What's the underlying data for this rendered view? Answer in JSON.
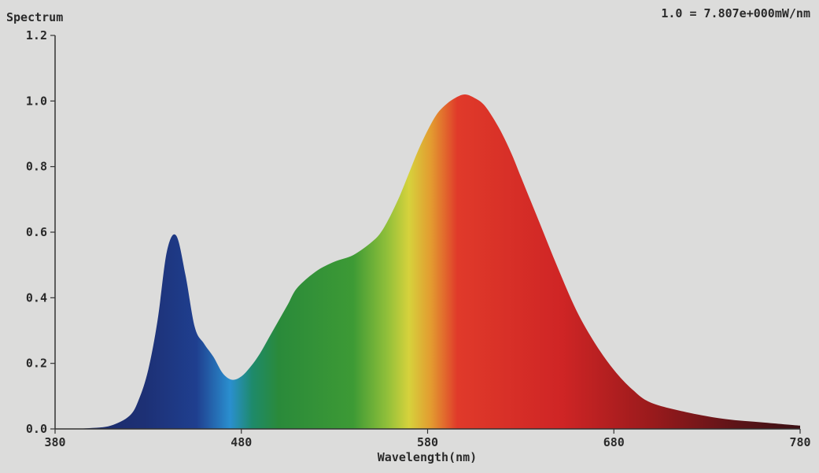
{
  "chart_data": {
    "type": "area",
    "title": "",
    "ylabel": "Spectrum",
    "xlabel": "Wavelength(nm)",
    "scale_note": "1.0 = 7.807e+000mW/nm",
    "xlim": [
      380,
      780
    ],
    "ylim": [
      0,
      1.2
    ],
    "x_ticks": [
      "380",
      "480",
      "580",
      "680",
      "780"
    ],
    "y_ticks": [
      "0.0",
      "0.2",
      "0.4",
      "0.6",
      "0.8",
      "1.0",
      "1.2"
    ],
    "grid": false,
    "fill": "visible-spectrum-gradient",
    "series": [
      {
        "x": [
          380,
          390,
          400,
          410,
          420,
          425,
          430,
          435,
          440,
          445,
          450,
          455,
          460,
          465,
          470,
          475,
          480,
          485,
          490,
          495,
          500,
          505,
          510,
          520,
          530,
          540,
          550,
          555,
          560,
          565,
          570,
          575,
          580,
          585,
          590,
          595,
          600,
          605,
          610,
          615,
          620,
          625,
          630,
          640,
          650,
          660,
          670,
          680,
          690,
          700,
          720,
          740,
          760,
          780
        ],
        "values": [
          0.0,
          0.0,
          0.003,
          0.01,
          0.04,
          0.09,
          0.18,
          0.33,
          0.54,
          0.59,
          0.47,
          0.31,
          0.26,
          0.22,
          0.17,
          0.15,
          0.16,
          0.19,
          0.23,
          0.28,
          0.33,
          0.38,
          0.43,
          0.48,
          0.51,
          0.53,
          0.57,
          0.6,
          0.65,
          0.71,
          0.78,
          0.85,
          0.91,
          0.96,
          0.99,
          1.01,
          1.02,
          1.01,
          0.99,
          0.95,
          0.9,
          0.84,
          0.77,
          0.63,
          0.49,
          0.36,
          0.26,
          0.18,
          0.12,
          0.08,
          0.05,
          0.03,
          0.02,
          0.01
        ]
      }
    ]
  }
}
